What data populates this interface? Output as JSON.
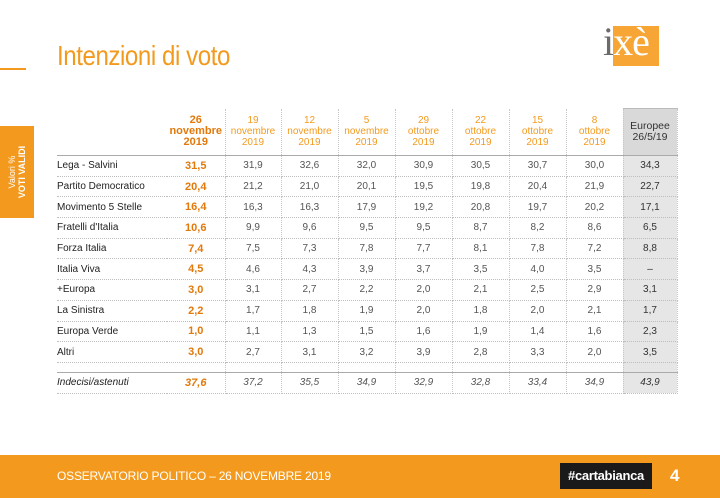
{
  "header": {
    "title": "Intenzioni di voto"
  },
  "logo": {
    "text_a": "i",
    "text_b": "xè"
  },
  "side_tab": {
    "line1": "Valori %",
    "line2": "VOTI VALIDI"
  },
  "table": {
    "columns": [
      {
        "l1": "26",
        "l2": "novembre",
        "l3": "2019"
      },
      {
        "l1": "19",
        "l2": "novembre",
        "l3": "2019"
      },
      {
        "l1": "12",
        "l2": "novembre",
        "l3": "2019"
      },
      {
        "l1": "5",
        "l2": "novembre",
        "l3": "2019"
      },
      {
        "l1": "29",
        "l2": "ottobre",
        "l3": "2019"
      },
      {
        "l1": "22",
        "l2": "ottobre",
        "l3": "2019"
      },
      {
        "l1": "15",
        "l2": "ottobre",
        "l3": "2019"
      },
      {
        "l1": "8",
        "l2": "ottobre",
        "l3": "2019"
      },
      {
        "l1": "Europee",
        "l2": "26/5/19",
        "l3": ""
      }
    ],
    "rows": [
      {
        "party": "Lega - Salvini",
        "values": [
          "31,5",
          "31,9",
          "32,6",
          "32,0",
          "30,9",
          "30,5",
          "30,7",
          "30,0",
          "34,3"
        ]
      },
      {
        "party": "Partito Democratico",
        "values": [
          "20,4",
          "21,2",
          "21,0",
          "20,1",
          "19,5",
          "19,8",
          "20,4",
          "21,9",
          "22,7"
        ]
      },
      {
        "party": "Movimento 5 Stelle",
        "values": [
          "16,4",
          "16,3",
          "16,3",
          "17,9",
          "19,2",
          "20,8",
          "19,7",
          "20,2",
          "17,1"
        ]
      },
      {
        "party": "Fratelli d'Italia",
        "values": [
          "10,6",
          "9,9",
          "9,6",
          "9,5",
          "9,5",
          "8,7",
          "8,2",
          "8,6",
          "6,5"
        ]
      },
      {
        "party": "Forza Italia",
        "values": [
          "7,4",
          "7,5",
          "7,3",
          "7,8",
          "7,7",
          "8,1",
          "7,8",
          "7,2",
          "8,8"
        ]
      },
      {
        "party": "Italia Viva",
        "values": [
          "4,5",
          "4,6",
          "4,3",
          "3,9",
          "3,7",
          "3,5",
          "4,0",
          "3,5",
          "–"
        ]
      },
      {
        "party": "+Europa",
        "values": [
          "3,0",
          "3,1",
          "2,7",
          "2,2",
          "2,0",
          "2,1",
          "2,5",
          "2,9",
          "3,1"
        ]
      },
      {
        "party": "La Sinistra",
        "values": [
          "2,2",
          "1,7",
          "1,8",
          "1,9",
          "2,0",
          "1,8",
          "2,0",
          "2,1",
          "1,7"
        ]
      },
      {
        "party": "Europa Verde",
        "values": [
          "1,0",
          "1,1",
          "1,3",
          "1,5",
          "1,6",
          "1,9",
          "1,4",
          "1,6",
          "2,3"
        ]
      },
      {
        "party": "Altri",
        "values": [
          "3,0",
          "2,7",
          "3,1",
          "3,2",
          "3,9",
          "2,8",
          "3,3",
          "2,0",
          "3,5"
        ]
      }
    ],
    "undecided": {
      "party": "Indecisi/astenuti",
      "values": [
        "37,6",
        "37,2",
        "35,5",
        "34,9",
        "32,9",
        "32,8",
        "33,4",
        "34,9",
        "43,9"
      ]
    }
  },
  "footer": {
    "text": "OSSERVATORIO POLITICO – 26 NOVEMBRE 2019",
    "brand": "#cartabianca",
    "page": "4"
  },
  "colors": {
    "accent": "#f39a1e",
    "highlight": "#e2790b",
    "euro_bg": "#e6e6e6"
  }
}
